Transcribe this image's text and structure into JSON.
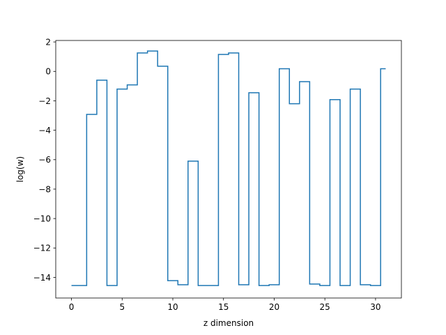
{
  "chart_data": {
    "type": "line",
    "drawstyle": "steps-mid",
    "title": "",
    "xlabel": "z dimension",
    "ylabel": "log(w)",
    "xlim": [
      -1.55,
      32.55
    ],
    "ylim": [
      -15.4,
      2.1
    ],
    "xticks": [
      0,
      5,
      10,
      15,
      20,
      25,
      30
    ],
    "yticks": [
      -14,
      -12,
      -10,
      -8,
      -6,
      -4,
      -2,
      0,
      2
    ],
    "grid": false,
    "line_color": "#1f77b4",
    "x": [
      0,
      1,
      2,
      3,
      4,
      5,
      6,
      7,
      8,
      9,
      10,
      11,
      12,
      13,
      14,
      15,
      16,
      17,
      18,
      19,
      20,
      21,
      22,
      23,
      24,
      25,
      26,
      27,
      28,
      29,
      30,
      31
    ],
    "y": [
      -14.55,
      -14.55,
      -2.92,
      -0.6,
      -14.55,
      -1.2,
      -0.92,
      1.25,
      1.38,
      0.35,
      -14.22,
      -14.5,
      -6.1,
      -14.55,
      -14.55,
      1.15,
      1.25,
      -14.5,
      -1.45,
      -14.55,
      -14.5,
      0.18,
      -2.2,
      -0.7,
      -14.45,
      -14.55,
      -1.92,
      -14.55,
      -1.2,
      -14.5,
      -14.55,
      0.18
    ]
  }
}
